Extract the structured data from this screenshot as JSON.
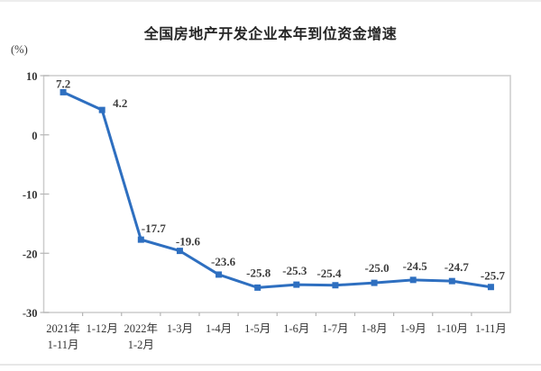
{
  "chart_data": {
    "type": "line",
    "title": "全国房地产开发企业本年到位资金增速",
    "unit_label": "(%)",
    "categories": [
      [
        "2021年",
        "1-11月"
      ],
      [
        "1-12月"
      ],
      [
        "2022年",
        "1-2月"
      ],
      [
        "1-3月"
      ],
      [
        "1-4月"
      ],
      [
        "1-5月"
      ],
      [
        "1-6月"
      ],
      [
        "1-7月"
      ],
      [
        "1-8月"
      ],
      [
        "1-9月"
      ],
      [
        "1-10月"
      ],
      [
        "1-11月"
      ]
    ],
    "values": [
      7.2,
      4.2,
      -17.7,
      -19.6,
      -23.6,
      -25.8,
      -25.3,
      -25.4,
      -25.0,
      -24.5,
      -24.7,
      -25.7
    ],
    "point_labels": [
      "7.2",
      "4.2",
      "-17.7",
      "-19.6",
      "-23.6",
      "-25.8",
      "-25.3",
      "-25.4",
      "-25.0",
      "-24.5",
      "-24.7",
      "-25.7"
    ],
    "y_ticks": [
      {
        "value": 10,
        "label": "10"
      },
      {
        "value": 0,
        "label": "0"
      },
      {
        "value": -10,
        "label": "-10"
      },
      {
        "value": -20,
        "label": "-20"
      },
      {
        "value": -30,
        "label": "-30"
      }
    ],
    "ylim": [
      -30,
      10
    ],
    "grid": false,
    "legend": "none",
    "marker": "square",
    "colors": {
      "line": "#2e6fc0",
      "marker": "#2e6fc0",
      "data_label": "#3d3d3d",
      "tick_label": "#333333",
      "axis_border": "#cccccc",
      "tick_mark": "#b5b5b5",
      "title": "#262626"
    }
  }
}
